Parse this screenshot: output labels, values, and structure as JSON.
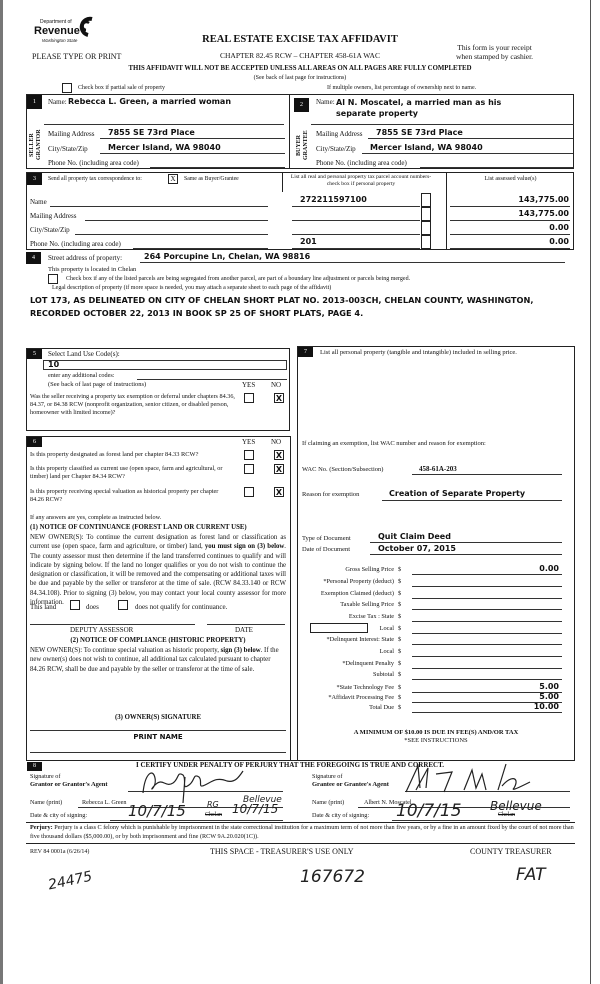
{
  "header": {
    "logo_dept": "Department of",
    "logo_name": "Revenue",
    "logo_state": "Washington State",
    "title": "REAL ESTATE EXCISE TAX AFFIDAVIT",
    "please": "PLEASE TYPE OR PRINT",
    "chapter": "CHAPTER 82.45 RCW – CHAPTER 458-61A WAC",
    "receipt1": "This form is your receipt",
    "receipt2": "when stamped by cashier.",
    "warning": "THIS AFFIDAVIT WILL NOT BE ACCEPTED UNLESS ALL AREAS ON ALL PAGES ARE FULLY COMPLETED",
    "see_back": "(See back of last page for instructions)",
    "partial_sale": "Check box if partial sale of property",
    "partial_sale_checked": false,
    "multiple_owners": "If multiple owners, list percentage of ownership next to name."
  },
  "seller": {
    "num": "1",
    "side_label1": "SELLER",
    "side_label2": "GRANTOR",
    "name_label": "Name:",
    "name": "Rebecca L. Green, a married woman",
    "mail_label": "Mailing Address",
    "mail": "7855 SE 73rd Place",
    "city_label": "City/State/Zip",
    "city": "Mercer Island, WA 98040",
    "phone_label": "Phone No. (including area code)",
    "phone": ""
  },
  "buyer": {
    "num": "2",
    "side_label1": "BUYER",
    "side_label2": "GRANTEE",
    "name_label": "Name:",
    "name": "Al N. Moscatel, a married man as his separate property",
    "mail_label": "Mailing Address",
    "mail": "7855 SE 73rd Place",
    "city_label": "City/State/Zip",
    "city": "Mercer Island, WA 98040",
    "phone_label": "Phone No. (including area code)",
    "phone": ""
  },
  "section3": {
    "num": "3",
    "send_label": "Send all property tax correspondence to:",
    "same_checked": "X",
    "same_label": "Same as Buyer/Grantee",
    "parcel_header": "List all real and personal property tax parcel account numbers-check box if personal property",
    "assessed_header": "List assessed value(s)",
    "name_label": "Name",
    "mail_label": "Mailing Address",
    "city_label": "City/State/Zip",
    "phone_label": "Phone No. (including area code)",
    "parcels": [
      "272211597100",
      "",
      "",
      "201"
    ],
    "values": [
      "143,775.00",
      "143,775.00",
      "0.00",
      "0.00"
    ]
  },
  "section4": {
    "num": "4",
    "street_label": "Street address of property:",
    "street": "264 Porcupine Ln, Chelan, WA 98816",
    "located": "This property is located in Chelan",
    "segregated": "Check box if any of the listed parcels are being segregated from another parcel, are part of a boundary line adjustment or parcels being merged.",
    "legal_label": "Legal description of property (if more space is needed, you may attach a separate sheet to each page of the affidavit)",
    "legal1": "LOT 173, AS DELINEATED ON CITY OF CHELAN SHORT PLAT NO. 2013-003CH, CHELAN COUNTY, WASHINGTON,",
    "legal2": "RECORDED OCTOBER 22, 2013 IN BOOK SP 25 OF SHORT PLATS, PAGE 4."
  },
  "section5": {
    "num": "5",
    "land_use_label": "Select Land Use Code(s):",
    "land_use": "10",
    "additional": "enter any additional codes:",
    "see_back": "(See back of last page of instructions)",
    "yes": "YES",
    "no": "NO",
    "question": "Was the seller receiving a property tax exemption or deferral under chapters 84.36, 84.37, or 84.38 RCW (nonprofit organization, senior citizen, or disabled person, homeowner with limited income)?",
    "answer_no": "X"
  },
  "section6": {
    "num": "6",
    "yes": "YES",
    "no": "NO",
    "q1": "Is this property designated as forest land per chapter 84.33 RCW?",
    "q2": "Is this property classified as current use (open space, farm and agricultural, or timber) land per Chapter 84.34 RCW?",
    "q3": "Is this property receiving special valuation as historical property per chapter 84.26 RCW?",
    "answer_no": "X",
    "if_yes": "If any answers are yes, complete as instructed below.",
    "notice1_title": "(1) NOTICE OF CONTINUANCE (FOREST LAND OR CURRENT USE)",
    "notice1_a": "NEW OWNER(S): To continue the current designation as forest land or classification as current use (open space, farm and agriculture, or timber) land, ",
    "notice1_bold": "you must sign on (3) below",
    "notice1_b": ". The county assessor must then determine if the land transferred continues to qualify and will indicate by signing below. If the land no longer qualifies or you do not wish to continue the designation or classification, it will be removed and the compensating or additional taxes will be due and payable by the seller or transferor at the time of sale. (RCW 84.33.140 or RCW 84.34.108). Prior to signing (3) below, you may contact your local county assessor for more information.",
    "this_land": "This land",
    "does": "does",
    "does_not": "does not qualify for continuance.",
    "deputy": "DEPUTY ASSESSOR",
    "date": "DATE",
    "notice2_title": "(2) NOTICE OF COMPLIANCE (HISTORIC PROPERTY)",
    "notice2_a": "NEW OWNER(S): To continue special valuation as historic property, ",
    "notice2_bold": "sign (3) below",
    "notice2_b": ". If the new owner(s) does not wish to continue, all additional tax calculated pursuant to chapter 84.26 RCW, shall be due and payable by the seller or transferor at the time of sale.",
    "owner_sig": "(3) OWNER(S) SIGNATURE",
    "print_name": "PRINT NAME"
  },
  "section7": {
    "num": "7",
    "personal_property": "List all personal property (tangible and intangible) included in selling price.",
    "exemption_label": "If claiming an exemption, list WAC number and reason for exemption:",
    "wac_label": "WAC No. (Section/Subsection)",
    "wac": "458-61A-203",
    "reason_label": "Reason for exemption",
    "reason": "Creation of Separate Property",
    "doc_type_label": "Type of Document",
    "doc_type": "Quit Claim Deed",
    "doc_date_label": "Date of Document",
    "doc_date": "October 07, 2015",
    "fees": [
      {
        "label": "Gross Selling Price",
        "value": "0.00"
      },
      {
        "label": "*Personal Property (deduct)",
        "value": ""
      },
      {
        "label": "Exemption Claimed (deduct)",
        "value": ""
      },
      {
        "label": "Taxable Selling Price",
        "value": ""
      },
      {
        "label": "Excise Tax :  State",
        "value": ""
      },
      {
        "label": "Local",
        "value": ""
      },
      {
        "label": "*Delinquent Interest:  State",
        "value": ""
      },
      {
        "label": "Local",
        "value": ""
      },
      {
        "label": "*Delinquent Penalty",
        "value": ""
      },
      {
        "label": "Subtotal",
        "value": ""
      },
      {
        "label": "*State Technology Fee",
        "value": "5.00"
      },
      {
        "label": "*Affidavit Processing Fee",
        "value": "5.00"
      },
      {
        "label": "Total Due",
        "value": "10.00"
      }
    ],
    "currency": "$",
    "minimum": "A MINIMUM OF $10.00 IS DUE IN FEE(S) AND/OR TAX",
    "see_instructions": "*SEE INSTRUCTIONS"
  },
  "section8": {
    "num": "8",
    "certify": "I CERTIFY UNDER PENALTY OF PERJURY THAT THE FOREGOING IS TRUE AND CORRECT.",
    "grantor_sig1": "Signature of",
    "grantor_sig2": "Grantor or Grantor's Agent",
    "grantee_sig1": "Signature of",
    "grantee_sig2": "Grantee or Grantee's Agent",
    "name_print_label": "Name (print)",
    "grantor_name": "Rebecca L. Green",
    "grantee_name": "Albert N. Moscatel",
    "date_city_label": "Date & city of signing:",
    "grantor_date": "10/7/15",
    "grantor_city_struck": "Chelan",
    "grantor_city": "Bellevue",
    "grantor_initials": "RG",
    "grantor_date2": "10/7/15",
    "grantee_date": "10/7/15",
    "grantee_city_struck": "Chelan",
    "grantee_city": "Bellevue"
  },
  "perjury": {
    "label": "Perjury:",
    "text": "Perjury is a class C felony which is punishable by imprisonment in the state correctional institution for a maximum term of not more than five years, or by a fine in an amount fixed by the court of not more than five thousand dollars ($5,000.00), or by both imprisonment and fine (RCW 9A.20.020(1C))."
  },
  "footer": {
    "rev": "REV 84 0001a (6/26/14)",
    "treasurer_use": "THIS SPACE - TREASURER'S USE ONLY",
    "county_treasurer": "COUNTY TREASURER",
    "hw_left": "24475",
    "hw_center": "167672",
    "hw_right": "FAT"
  }
}
